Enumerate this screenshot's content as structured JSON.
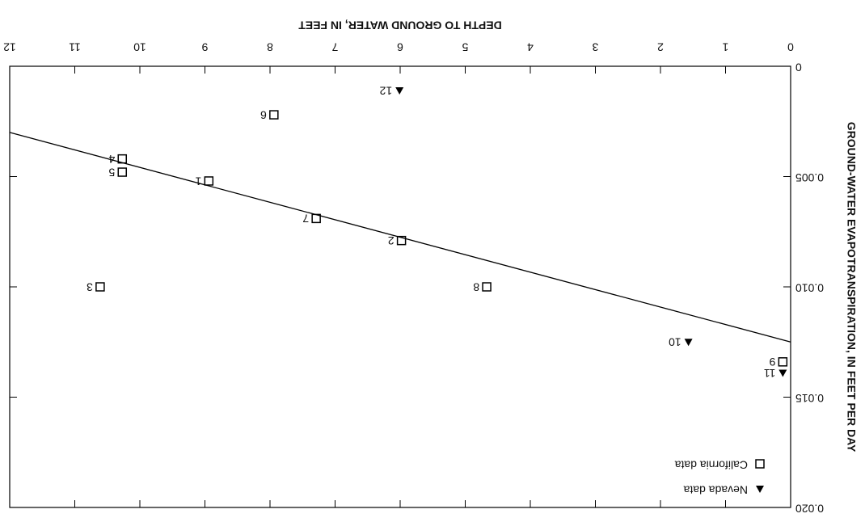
{
  "chart_data": {
    "type": "scatter",
    "xlabel": "DEPTH TO GROUND WATER, IN FEET",
    "ylabel": "GROUND-WATER EVAPOTRANSPIRATION, IN FEET PER DAY",
    "xlim": [
      0,
      12
    ],
    "xticks": [
      0,
      1,
      2,
      3,
      4,
      5,
      6,
      7,
      8,
      9,
      10,
      11,
      12
    ],
    "ylim": [
      0,
      0.02
    ],
    "yticks": [
      0,
      0.005,
      {
        "value": 0.01,
        "label": "0.010"
      },
      0.015,
      {
        "value": 0.02,
        "label": "0.020"
      }
    ],
    "legend": "upper left",
    "rotation": 180,
    "series": [
      {
        "name": "Nevada data",
        "marker": "triangle",
        "color": "#000000",
        "x": [
          6.01,
          1.57,
          0.12
        ],
        "values": [
          0.0011,
          0.0125,
          0.0139
        ],
        "point_labels": [
          "12",
          "10",
          "11"
        ]
      },
      {
        "name": "California data",
        "marker": "square",
        "color": "#000000",
        "x": [
          7.94,
          10.27,
          10.27,
          8.94,
          7.29,
          5.98,
          10.61,
          4.67,
          0.12
        ],
        "values": [
          0.0022,
          0.0042,
          0.0048,
          0.0052,
          0.0069,
          0.0079,
          0.01,
          0.01,
          0.0134
        ],
        "point_labels": [
          "6",
          "4",
          "5",
          "1",
          "7",
          "2",
          "3",
          "8",
          "9"
        ]
      },
      {
        "marker": "line",
        "color": "#000000",
        "x": [
          0,
          12
        ],
        "values": [
          0.0125,
          0.003
        ]
      }
    ]
  }
}
